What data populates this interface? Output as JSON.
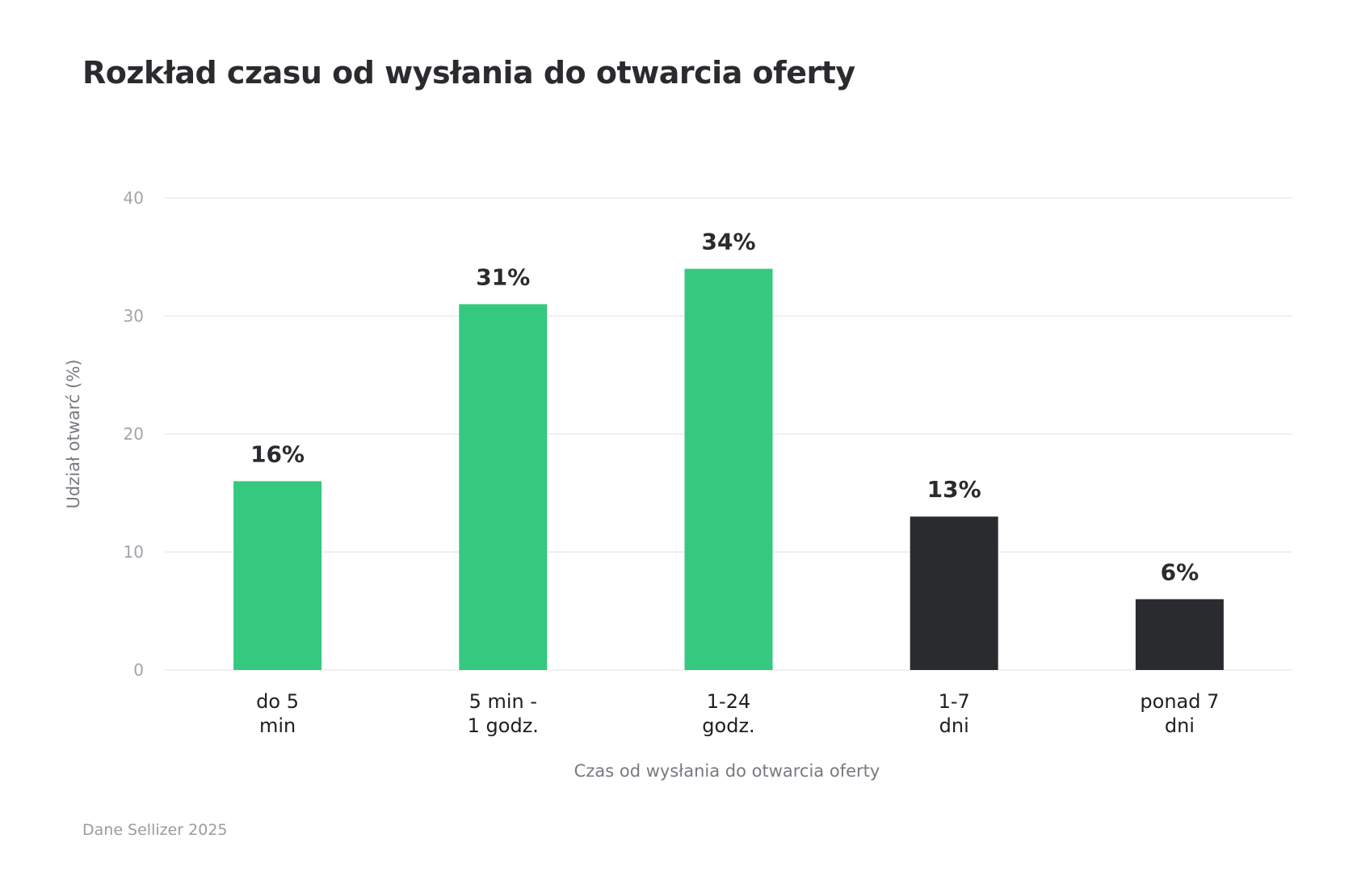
{
  "source_note": "Dane Sellizer 2025",
  "colors": {
    "highlight": "#34c97f",
    "dark": "#2a2b2e",
    "grid": "#ececee"
  },
  "chart_data": {
    "type": "bar",
    "title": "Rozkład czasu od wysłania do otwarcia oferty",
    "xlabel": "Czas od wysłania do otwarcia oferty",
    "ylabel": "Udział otwarć (%)",
    "ylim": [
      0,
      40
    ],
    "yticks": [
      0,
      10,
      20,
      30,
      40
    ],
    "grid": true,
    "categories": [
      [
        "do 5",
        "min"
      ],
      [
        "5 min -",
        "1 godz."
      ],
      [
        "1-24",
        "godz."
      ],
      [
        "1-7",
        "dni"
      ],
      [
        "ponad 7",
        "dni"
      ]
    ],
    "values": [
      16,
      31,
      34,
      13,
      6
    ],
    "value_labels": [
      "16%",
      "31%",
      "34%",
      "13%",
      "6%"
    ],
    "bar_colors": [
      "#34c97f",
      "#34c97f",
      "#34c97f",
      "#2a2b2e",
      "#2a2b2e"
    ]
  }
}
